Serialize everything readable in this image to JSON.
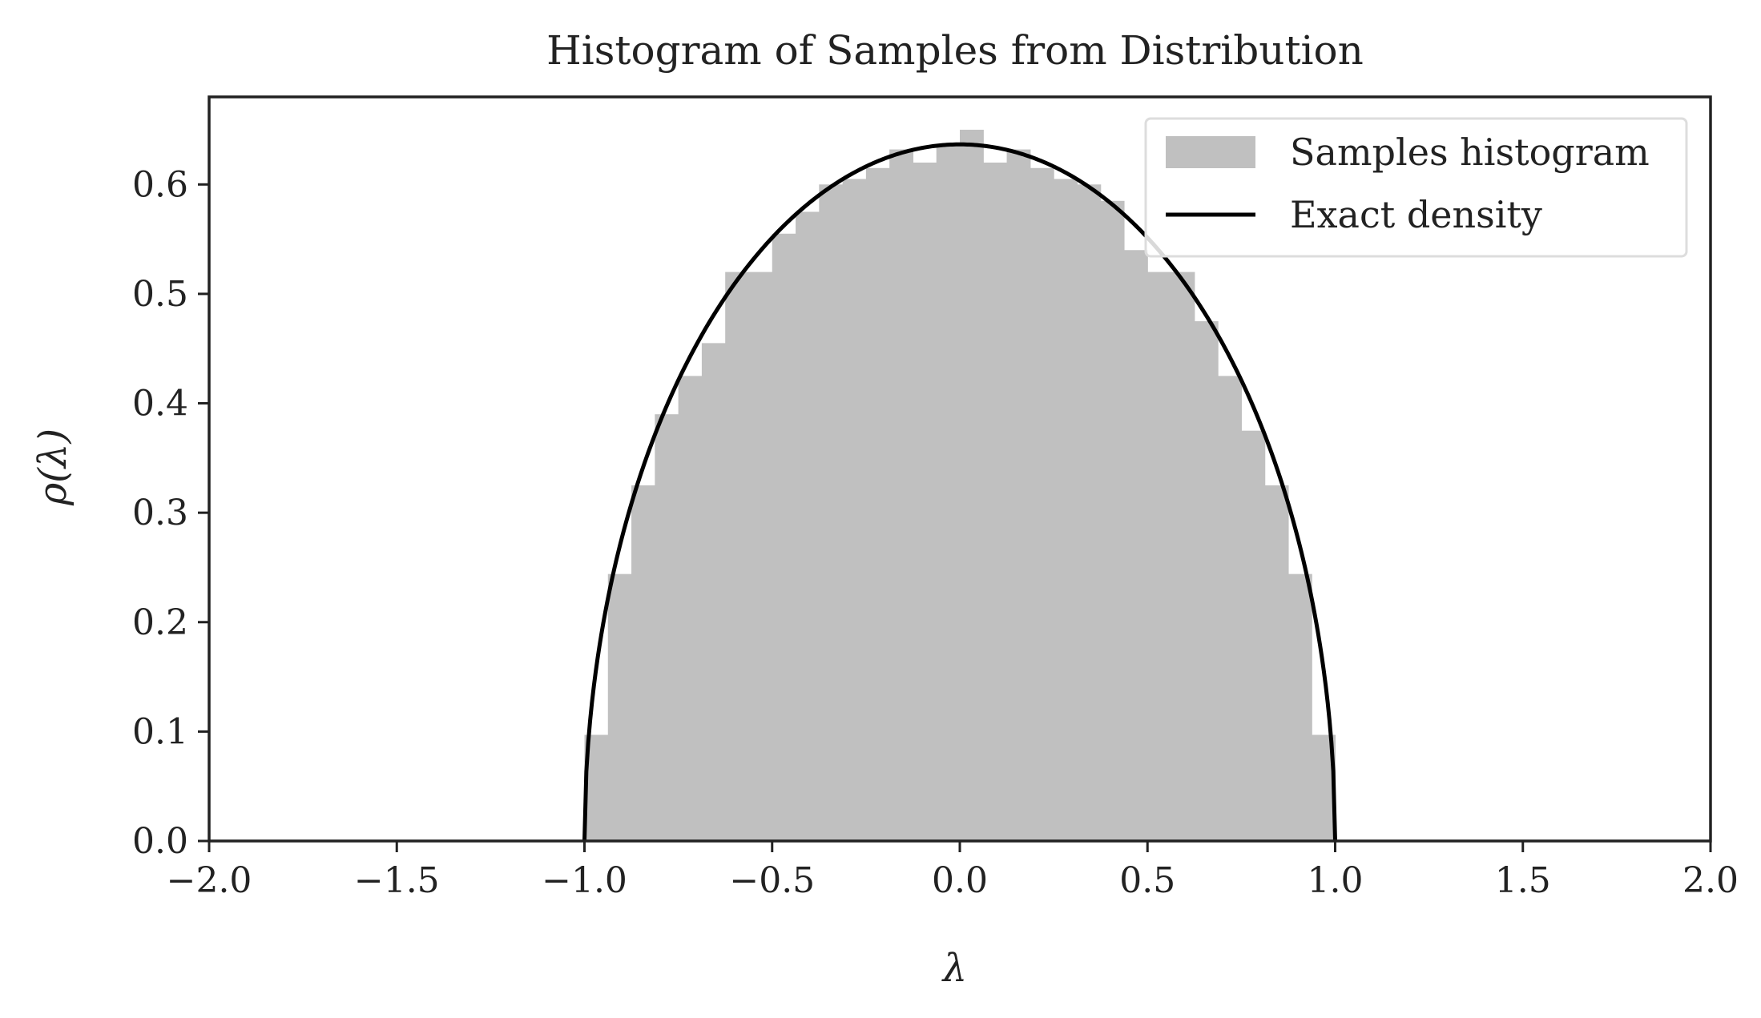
{
  "chart_data": {
    "type": "bar",
    "title": "Histogram of Samples from Distribution",
    "xlabel": "λ",
    "ylabel": "ρ(λ)",
    "xlim": [
      -2.0,
      2.0
    ],
    "ylim": [
      0.0,
      0.68
    ],
    "xticks": [
      -2.0,
      -1.5,
      -1.0,
      -0.5,
      0.0,
      0.5,
      1.0,
      1.5,
      2.0
    ],
    "xtick_labels": [
      "−2.0",
      "−1.5",
      "−1.0",
      "−0.5",
      "0.0",
      "0.5",
      "1.0",
      "1.5",
      "2.0"
    ],
    "yticks": [
      0.0,
      0.1,
      0.2,
      0.3,
      0.4,
      0.5,
      0.6
    ],
    "ytick_labels": [
      "0.0",
      "0.1",
      "0.2",
      "0.3",
      "0.4",
      "0.5",
      "0.6"
    ],
    "grid": false,
    "legend_position": "top-right",
    "histogram": {
      "name": "Samples histogram",
      "color": "#c0c0c0",
      "bin_edges": [
        -1.0,
        -0.9375,
        -0.875,
        -0.8125,
        -0.75,
        -0.6875,
        -0.625,
        -0.5625,
        -0.5,
        -0.4375,
        -0.375,
        -0.3125,
        -0.25,
        -0.1875,
        -0.125,
        -0.0625,
        0.0,
        0.0625,
        0.125,
        0.1875,
        0.25,
        0.3125,
        0.375,
        0.4375,
        0.5,
        0.5625,
        0.625,
        0.6875,
        0.75,
        0.8125,
        0.875,
        0.9375,
        1.0
      ],
      "values": [
        0.097,
        0.244,
        0.325,
        0.39,
        0.425,
        0.455,
        0.52,
        0.52,
        0.555,
        0.575,
        0.6,
        0.605,
        0.615,
        0.632,
        0.62,
        0.636,
        0.65,
        0.62,
        0.632,
        0.615,
        0.605,
        0.6,
        0.585,
        0.54,
        0.52,
        0.52,
        0.475,
        0.425,
        0.375,
        0.325,
        0.244,
        0.097
      ]
    },
    "curve": {
      "name": "Exact density",
      "color": "#000000",
      "formula": "rho(x) = (2/pi) * sqrt(1 - x^2), |x| <= 1"
    },
    "legend": {
      "entries": [
        "Samples histogram",
        "Exact density"
      ]
    }
  }
}
